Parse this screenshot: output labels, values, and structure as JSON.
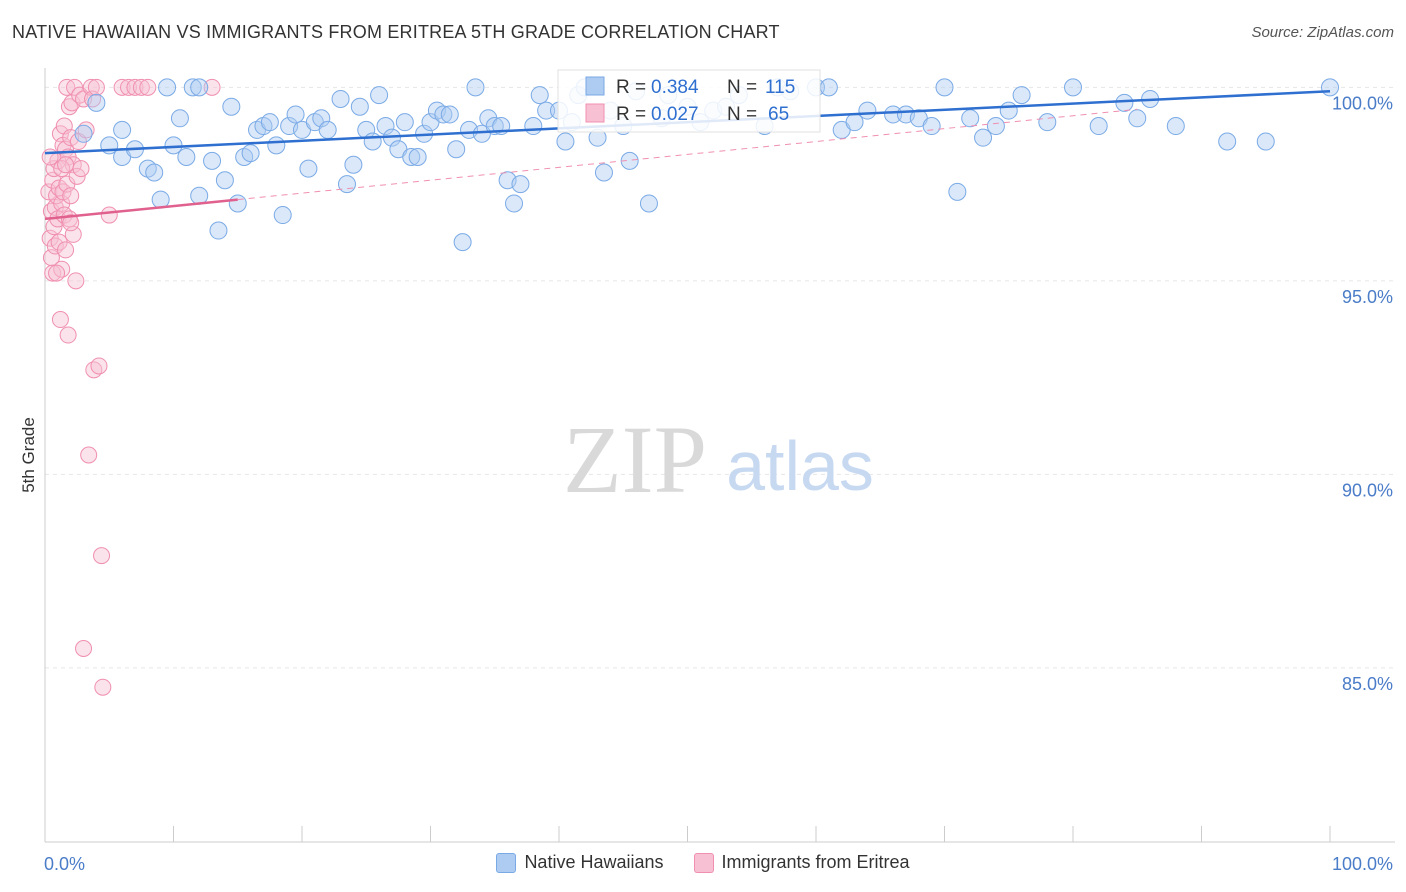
{
  "title": "NATIVE HAWAIIAN VS IMMIGRANTS FROM ERITREA 5TH GRADE CORRELATION CHART",
  "source": "Source: ZipAtlas.com",
  "watermark": {
    "zip": "ZIP",
    "atlas": "atlas"
  },
  "colors": {
    "blue": "#7aaae6",
    "blue_line": "#2e6fd0",
    "blue_fill": "#aecbf2",
    "pink": "#f08fb0",
    "pink_line": "#e0608e",
    "pink_fill": "#f7c0d3",
    "axis_text": "#4a7cc8"
  },
  "legend_box": {
    "row1": {
      "r_label": "R = ",
      "r_value": "0.384",
      "n_label": "N = ",
      "n_value": "115"
    },
    "row2": {
      "r_label": "R = ",
      "r_value": "0.027",
      "n_label": "N = ",
      "n_value": "65"
    }
  },
  "bottom_legend": {
    "series1": "Native Hawaiians",
    "series2": "Immigrants from Eritrea"
  },
  "chart_data": {
    "type": "scatter",
    "title": "NATIVE HAWAIIAN VS IMMIGRANTS FROM ERITREA 5TH GRADE CORRELATION CHART",
    "ylabel": "5th Grade",
    "xlim": [
      0,
      100
    ],
    "ylim": [
      80.5,
      100.5
    ],
    "x_tick_labels": [
      "0.0%",
      "100.0%"
    ],
    "y_ticks": [
      85,
      90,
      95,
      100
    ],
    "y_tick_labels": [
      "85.0%",
      "90.0%",
      "95.0%",
      "100.0%"
    ],
    "grid": true,
    "series": [
      {
        "name": "Native Hawaiians",
        "R": 0.384,
        "N": 115,
        "trend": [
          [
            0,
            98.3
          ],
          [
            100,
            99.9
          ]
        ],
        "points": [
          [
            3,
            98.8
          ],
          [
            4,
            99.6
          ],
          [
            5,
            98.5
          ],
          [
            6,
            98.2
          ],
          [
            6,
            98.9
          ],
          [
            7,
            98.4
          ],
          [
            8,
            97.9
          ],
          [
            8.5,
            97.8
          ],
          [
            9,
            97.1
          ],
          [
            9.5,
            100
          ],
          [
            10,
            98.5
          ],
          [
            10.5,
            99.2
          ],
          [
            11,
            98.2
          ],
          [
            12,
            97.2
          ],
          [
            11.5,
            100
          ],
          [
            12,
            100
          ],
          [
            13,
            98.1
          ],
          [
            13.5,
            96.3
          ],
          [
            14,
            97.6
          ],
          [
            14.5,
            99.5
          ],
          [
            15,
            97.0
          ],
          [
            15.5,
            98.2
          ],
          [
            16,
            98.3
          ],
          [
            16.5,
            98.9
          ],
          [
            17,
            99.0
          ],
          [
            17.5,
            99.1
          ],
          [
            18,
            98.5
          ],
          [
            18.5,
            96.7
          ],
          [
            19,
            99.0
          ],
          [
            19.5,
            99.3
          ],
          [
            20,
            98.9
          ],
          [
            20.5,
            97.9
          ],
          [
            21,
            99.1
          ],
          [
            21.5,
            99.2
          ],
          [
            22,
            98.9
          ],
          [
            23,
            99.7
          ],
          [
            23.5,
            97.5
          ],
          [
            24,
            98.0
          ],
          [
            24.5,
            99.5
          ],
          [
            25,
            98.9
          ],
          [
            25.5,
            98.6
          ],
          [
            26,
            99.8
          ],
          [
            26.5,
            99.0
          ],
          [
            27,
            98.7
          ],
          [
            27.5,
            98.4
          ],
          [
            28,
            99.1
          ],
          [
            28.5,
            98.2
          ],
          [
            29,
            98.2
          ],
          [
            29.5,
            98.8
          ],
          [
            30,
            99.1
          ],
          [
            30.5,
            99.4
          ],
          [
            31,
            99.3
          ],
          [
            31.5,
            99.3
          ],
          [
            32,
            98.4
          ],
          [
            32.5,
            96.0
          ],
          [
            33,
            98.9
          ],
          [
            33.5,
            100
          ],
          [
            34,
            98.8
          ],
          [
            34.5,
            99.2
          ],
          [
            35,
            99.0
          ],
          [
            35.5,
            99.0
          ],
          [
            36,
            97.6
          ],
          [
            36.5,
            97.0
          ],
          [
            37,
            97.5
          ],
          [
            38,
            99.0
          ],
          [
            38.5,
            99.8
          ],
          [
            39,
            99.4
          ],
          [
            40,
            99.4
          ],
          [
            40.5,
            98.6
          ],
          [
            41,
            99.1
          ],
          [
            41.5,
            99.8
          ],
          [
            42,
            100
          ],
          [
            43,
            98.7
          ],
          [
            43.5,
            97.8
          ],
          [
            44,
            99.4
          ],
          [
            45,
            99.0
          ],
          [
            45.5,
            98.1
          ],
          [
            46,
            99.9
          ],
          [
            47,
            97.0
          ],
          [
            48,
            99.2
          ],
          [
            48.5,
            99.8
          ],
          [
            50,
            99.5
          ],
          [
            51,
            99.1
          ],
          [
            52,
            99.4
          ],
          [
            53,
            99.5
          ],
          [
            54,
            99.8
          ],
          [
            56,
            99.0
          ],
          [
            57,
            100
          ],
          [
            58,
            99.9
          ],
          [
            60,
            100
          ],
          [
            61,
            100
          ],
          [
            62,
            98.9
          ],
          [
            63,
            99.1
          ],
          [
            64,
            99.4
          ],
          [
            66,
            99.3
          ],
          [
            67,
            99.3
          ],
          [
            68,
            99.2
          ],
          [
            69,
            99.0
          ],
          [
            70,
            100
          ],
          [
            71,
            97.3
          ],
          [
            72,
            99.2
          ],
          [
            73,
            98.7
          ],
          [
            74,
            99.0
          ],
          [
            75,
            99.4
          ],
          [
            76,
            99.8
          ],
          [
            78,
            99.1
          ],
          [
            80,
            100
          ],
          [
            82,
            99.0
          ],
          [
            84,
            99.6
          ],
          [
            85,
            99.2
          ],
          [
            86,
            99.7
          ],
          [
            88,
            99.0
          ],
          [
            92,
            98.6
          ],
          [
            95,
            98.6
          ],
          [
            100,
            100
          ]
        ]
      },
      {
        "name": "Immigrants from Eritrea",
        "R": 0.027,
        "N": 65,
        "trend": [
          [
            0,
            96.6
          ],
          [
            15,
            97.1
          ]
        ],
        "points": [
          [
            0.3,
            97.3
          ],
          [
            0.4,
            96.1
          ],
          [
            0.5,
            95.6
          ],
          [
            0.5,
            96.8
          ],
          [
            0.6,
            97.6
          ],
          [
            0.6,
            95.2
          ],
          [
            0.7,
            96.4
          ],
          [
            0.7,
            97.9
          ],
          [
            0.8,
            96.9
          ],
          [
            0.8,
            95.9
          ],
          [
            0.9,
            97.2
          ],
          [
            1.0,
            96.6
          ],
          [
            1.0,
            98.1
          ],
          [
            1.1,
            97.4
          ],
          [
            1.1,
            96.0
          ],
          [
            1.2,
            98.8
          ],
          [
            1.2,
            94.0
          ],
          [
            1.3,
            97.0
          ],
          [
            1.3,
            95.3
          ],
          [
            1.4,
            98.5
          ],
          [
            1.4,
            97.3
          ],
          [
            1.5,
            96.7
          ],
          [
            1.5,
            99.0
          ],
          [
            1.6,
            98.4
          ],
          [
            1.6,
            95.8
          ],
          [
            1.7,
            100
          ],
          [
            1.7,
            97.5
          ],
          [
            1.8,
            98.2
          ],
          [
            1.8,
            93.6
          ],
          [
            1.9,
            96.6
          ],
          [
            1.9,
            99.5
          ],
          [
            2.0,
            97.2
          ],
          [
            2.0,
            98.7
          ],
          [
            2.1,
            99.6
          ],
          [
            2.2,
            96.2
          ],
          [
            2.2,
            98.0
          ],
          [
            2.3,
            100
          ],
          [
            2.4,
            95.0
          ],
          [
            2.5,
            97.7
          ],
          [
            2.6,
            98.6
          ],
          [
            2.7,
            99.8
          ],
          [
            2.8,
            97.9
          ],
          [
            3.0,
            85.5
          ],
          [
            3.0,
            99.7
          ],
          [
            3.2,
            98.9
          ],
          [
            3.4,
            90.5
          ],
          [
            3.6,
            100
          ],
          [
            3.7,
            99.7
          ],
          [
            3.8,
            92.7
          ],
          [
            4.0,
            100
          ],
          [
            4.2,
            92.8
          ],
          [
            4.4,
            87.9
          ],
          [
            4.5,
            84.5
          ],
          [
            5.0,
            96.7
          ],
          [
            6.0,
            100
          ],
          [
            6.5,
            100
          ],
          [
            7.0,
            100
          ],
          [
            7.5,
            100
          ],
          [
            8.0,
            100
          ],
          [
            0.9,
            95.2
          ],
          [
            1.3,
            97.9
          ],
          [
            1.6,
            98.0
          ],
          [
            2.0,
            96.5
          ],
          [
            0.4,
            98.2
          ],
          [
            13.0,
            100
          ]
        ]
      }
    ]
  }
}
